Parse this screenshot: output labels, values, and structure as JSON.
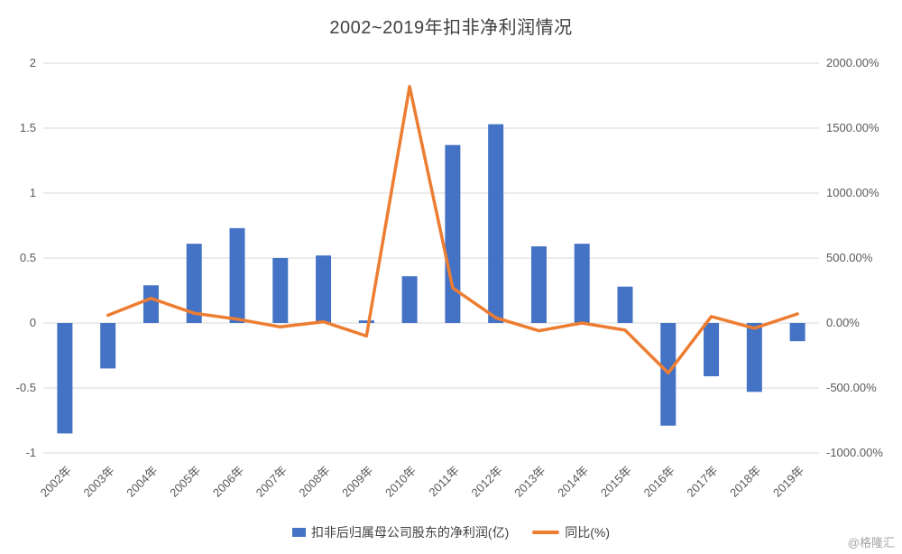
{
  "title": "2002~2019年扣非净利润情况",
  "watermark": "@格隆汇",
  "legend": {
    "bar_label": "扣非后归属母公司股东的净利润(亿)",
    "line_label": "同比(%)"
  },
  "colors": {
    "bar": "#4472C4",
    "line": "#ED7D31",
    "grid": "#d9d9d9",
    "axis_text": "#595959"
  },
  "chart_data": {
    "type": "bar",
    "subtype": "bar+line combo, dual axis",
    "title": "2002~2019年扣非净利润情况",
    "categories": [
      "2002年",
      "2003年",
      "2004年",
      "2005年",
      "2006年",
      "2007年",
      "2008年",
      "2009年",
      "2010年",
      "2011年",
      "2012年",
      "2013年",
      "2014年",
      "2015年",
      "2016年",
      "2017年",
      "2018年",
      "2019年"
    ],
    "series": [
      {
        "name": "扣非后归属母公司股东的净利润(亿)",
        "type": "bar",
        "axis": "left",
        "color": "#4472C4",
        "values": [
          -0.85,
          -0.35,
          0.29,
          0.61,
          0.73,
          0.5,
          0.52,
          0.02,
          0.36,
          1.37,
          1.53,
          0.59,
          0.61,
          0.28,
          -0.79,
          -0.41,
          -0.53,
          -0.14
        ]
      },
      {
        "name": "同比(%)",
        "type": "line",
        "axis": "right",
        "color": "#ED7D31",
        "values": [
          null,
          60,
          190,
          75,
          30,
          -30,
          10,
          -100,
          1820,
          270,
          40,
          -60,
          0,
          -55,
          -385,
          50,
          -40,
          70
        ]
      }
    ],
    "left_axis": {
      "min": -1,
      "max": 2,
      "ticks": [
        2,
        1.5,
        1,
        0.5,
        0,
        -0.5,
        -1
      ],
      "tick_labels": [
        "2",
        "1.5",
        "1",
        "0.5",
        "0",
        "-0.5",
        "-1"
      ]
    },
    "right_axis": {
      "min": -1000,
      "max": 2000,
      "ticks": [
        2000,
        1500,
        1000,
        500,
        0,
        -500,
        -1000
      ],
      "tick_labels": [
        "2000.00%",
        "1500.00%",
        "1000.00%",
        "500.00%",
        "0.00%",
        "-500.00%",
        "-1000.00%"
      ]
    },
    "grid": true,
    "legend_position": "bottom",
    "x_label_rotation": 45
  }
}
